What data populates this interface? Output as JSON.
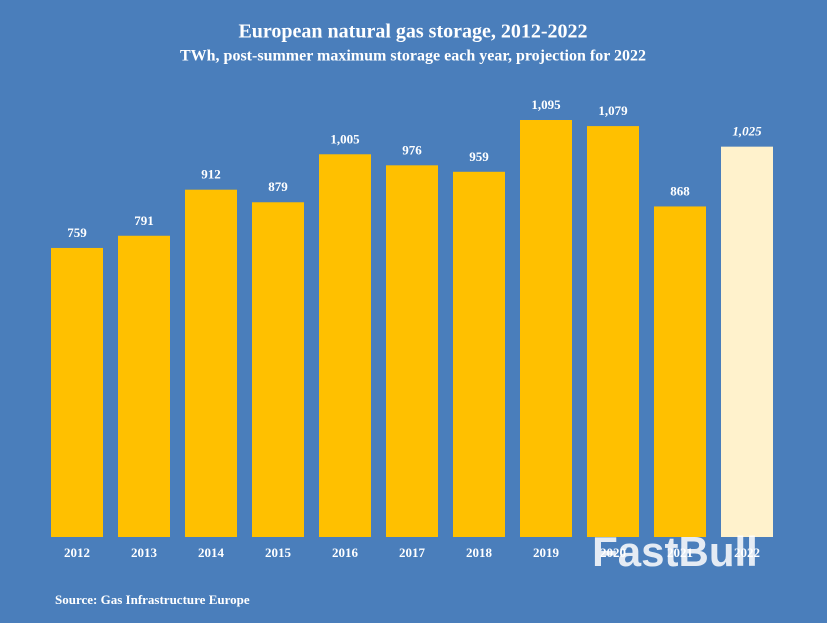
{
  "chart_data": {
    "type": "bar",
    "title": "European natural gas storage, 2012-2022",
    "subtitle": "TWh, post-summer maximum storage each year, projection for 2022",
    "categories": [
      "2012",
      "2013",
      "2014",
      "2015",
      "2016",
      "2017",
      "2018",
      "2019",
      "2020",
      "2021",
      "2022"
    ],
    "values": [
      759,
      791,
      912,
      879,
      1005,
      976,
      959,
      1095,
      1079,
      868,
      1025
    ],
    "value_labels": [
      "759",
      "791",
      "912",
      "879",
      "1,005",
      "976",
      "959",
      "1,095",
      "1,079",
      "868",
      "1,025"
    ],
    "colors": [
      "#ffc000",
      "#ffc000",
      "#ffc000",
      "#ffc000",
      "#ffc000",
      "#ffc000",
      "#ffc000",
      "#ffc000",
      "#ffc000",
      "#ffc000",
      "#fff2cc"
    ],
    "background": "#4a7ebb",
    "source": "Source: Gas Infrastructure Europe",
    "watermark": "FastBull"
  }
}
